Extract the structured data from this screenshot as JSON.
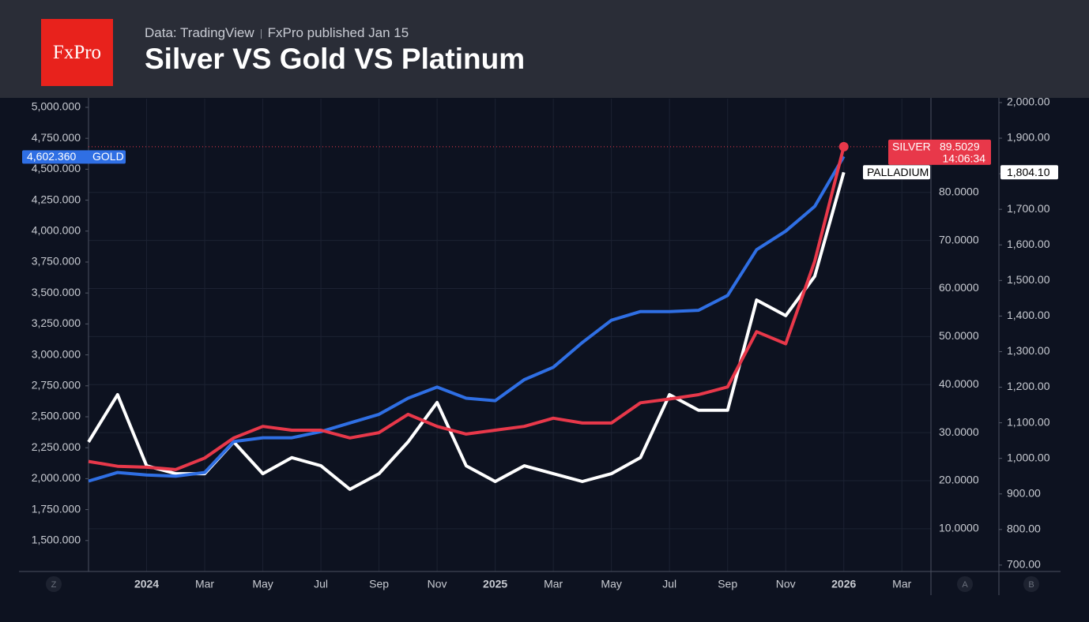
{
  "header": {
    "logo": "FxPro",
    "source": "Data: TradingView",
    "published": "FxPro published Jan 15"
  },
  "chart_data": {
    "type": "line",
    "title": "Silver VS Gold VS Platinum",
    "grid": true,
    "x": [
      "2023-11",
      "2023-12",
      "2024-01",
      "2024-02",
      "2024-03",
      "2024-04",
      "2024-05",
      "2024-06",
      "2024-07",
      "2024-08",
      "2024-09",
      "2024-10",
      "2024-11",
      "2024-12",
      "2025-01",
      "2025-02",
      "2025-03",
      "2025-04",
      "2025-05",
      "2025-06",
      "2025-07",
      "2025-08",
      "2025-09",
      "2025-10",
      "2025-11",
      "2025-12",
      "2026-01"
    ],
    "xlim": [
      "2023-11",
      "2026-04"
    ],
    "xticks": [
      {
        "value": "2024-01",
        "label": "2024"
      },
      {
        "value": "2024-03",
        "label": "Mar"
      },
      {
        "value": "2024-05",
        "label": "May"
      },
      {
        "value": "2024-07",
        "label": "Jul"
      },
      {
        "value": "2024-09",
        "label": "Sep"
      },
      {
        "value": "2024-11",
        "label": "Nov"
      },
      {
        "value": "2025-01",
        "label": "2025"
      },
      {
        "value": "2025-03",
        "label": "Mar"
      },
      {
        "value": "2025-05",
        "label": "May"
      },
      {
        "value": "2025-07",
        "label": "Jul"
      },
      {
        "value": "2025-09",
        "label": "Sep"
      },
      {
        "value": "2025-11",
        "label": "Nov"
      },
      {
        "value": "2026-01",
        "label": "2026"
      },
      {
        "value": "2026-03",
        "label": "Mar"
      }
    ],
    "ylim": [
      1250,
      5070
    ],
    "yticks": [
      {
        "value": 1500,
        "label": "1,500.000"
      },
      {
        "value": 1750,
        "label": "1,750.000"
      },
      {
        "value": 2000,
        "label": "2,000.000"
      },
      {
        "value": 2250,
        "label": "2,250.000"
      },
      {
        "value": 2500,
        "label": "2,500.000"
      },
      {
        "value": 2750,
        "label": "2,750.000"
      },
      {
        "value": 3000,
        "label": "3,000.000"
      },
      {
        "value": 3250,
        "label": "3,250.000"
      },
      {
        "value": 3500,
        "label": "3,500.000"
      },
      {
        "value": 3750,
        "label": "3,750.000"
      },
      {
        "value": 4000,
        "label": "4,000.000"
      },
      {
        "value": 4250,
        "label": "4,250.000"
      },
      {
        "value": 4500,
        "label": "4,500.000"
      },
      {
        "value": 4750,
        "label": "4,750.000"
      },
      {
        "value": 5000,
        "label": "5,000.000"
      }
    ],
    "y2lim": [
      1.1,
      99.5
    ],
    "y2ticks": [
      {
        "value": 10,
        "label": "10.0000"
      },
      {
        "value": 20,
        "label": "20.0000"
      },
      {
        "value": 30,
        "label": "30.0000"
      },
      {
        "value": 40,
        "label": "40.0000"
      },
      {
        "value": 50,
        "label": "50.0000"
      },
      {
        "value": 60,
        "label": "60.0000"
      },
      {
        "value": 70,
        "label": "70.0000"
      },
      {
        "value": 80,
        "label": "80.0000"
      }
    ],
    "y3lim": [
      682,
      2011
    ],
    "y3ticks": [
      {
        "value": 700,
        "label": "700.00"
      },
      {
        "value": 800,
        "label": "800.00"
      },
      {
        "value": 900,
        "label": "900.00"
      },
      {
        "value": 1000,
        "label": "1,000.00"
      },
      {
        "value": 1100,
        "label": "1,100.00"
      },
      {
        "value": 1200,
        "label": "1,200.00"
      },
      {
        "value": 1300,
        "label": "1,300.00"
      },
      {
        "value": 1400,
        "label": "1,400.00"
      },
      {
        "value": 1500,
        "label": "1,500.00"
      },
      {
        "value": 1600,
        "label": "1,600.00"
      },
      {
        "value": 1700,
        "label": "1,700.00"
      },
      {
        "value": 1800,
        "label": "1,800.00"
      },
      {
        "value": 1900,
        "label": "1,900.00"
      },
      {
        "value": 2000,
        "label": "2,000.00"
      }
    ],
    "axis_buttons": [
      "Z",
      "A",
      "B"
    ],
    "series": [
      {
        "name": "GOLD",
        "color": "#2f6fe4",
        "axis": "y",
        "values": [
          1980,
          2050,
          2030,
          2020,
          2050,
          2300,
          2330,
          2330,
          2380,
          2450,
          2520,
          2650,
          2740,
          2650,
          2630,
          2800,
          2900,
          3100,
          3280,
          3350,
          3350,
          3360,
          3480,
          3850,
          4000,
          4200,
          4602.36
        ],
        "value_labels": [
          null,
          null,
          null,
          null,
          null,
          null,
          null,
          null,
          null,
          null,
          null,
          null,
          null,
          null,
          null,
          null,
          null,
          null,
          null,
          null,
          null,
          null,
          null,
          null,
          null,
          null,
          "4,602.360"
        ]
      },
      {
        "name": "SILVER",
        "color": "#e8384a",
        "axis": "y2",
        "countdown": "14:06:34",
        "values": [
          24,
          23,
          22.8,
          22.3,
          24.7,
          28.9,
          31.3,
          30.5,
          30.5,
          28.9,
          30,
          33.8,
          31.3,
          29.7,
          30.5,
          31.3,
          33,
          32,
          32,
          36.2,
          37,
          37.9,
          39.5,
          51,
          48.5,
          65.7,
          89.5029
        ]
      },
      {
        "name": "PALLADIUM",
        "color": "#ffffff",
        "axis": "y3",
        "values": [
          1046,
          1179,
          979,
          957,
          957,
          1046,
          957,
          1002,
          979,
          913,
          957,
          1046,
          1157,
          979,
          935,
          979,
          957,
          935,
          957,
          1002,
          1179,
          1135,
          1135,
          1445,
          1401,
          1512,
          1804.1
        ],
        "value_labels": [
          null,
          null,
          null,
          null,
          null,
          null,
          null,
          null,
          null,
          null,
          null,
          null,
          null,
          null,
          null,
          null,
          null,
          null,
          null,
          null,
          null,
          null,
          null,
          null,
          null,
          null,
          "1,804.10"
        ]
      }
    ]
  }
}
